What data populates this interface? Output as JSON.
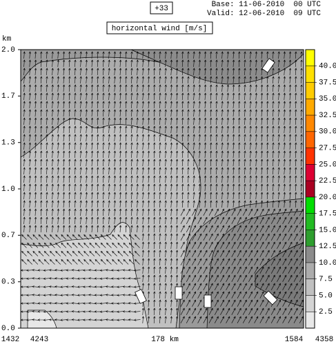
{
  "chart_data": {
    "type": "cross-section",
    "title": "horizontal wind [m/s]",
    "forecast_label": "+33",
    "base": "Base: 11-06-2010  00 UTC",
    "valid": "Valid: 12-06-2010  09 UTC",
    "y_unit": "km",
    "ylim": [
      0,
      2
    ],
    "yticks": [
      {
        "value": 0,
        "label": "0.0"
      },
      {
        "value": 0.333,
        "label": "0.3"
      },
      {
        "value": 0.667,
        "label": "0.7"
      },
      {
        "value": 1,
        "label": "1.0"
      },
      {
        "value": 1.333,
        "label": "1.3"
      },
      {
        "value": 1.667,
        "label": "1.7"
      },
      {
        "value": 2,
        "label": "2.0"
      }
    ],
    "x_labels": [
      "1432",
      "4243",
      "178 km",
      "1584",
      "4358"
    ],
    "colorbar": {
      "levels": [
        0,
        2.5,
        5,
        7.5,
        10,
        12.5,
        15,
        17.5,
        20,
        22.5,
        25,
        27.5,
        30,
        32.5,
        35,
        37.5,
        40,
        42.5
      ],
      "colors": [
        "#e8e8e8",
        "#d4d4d4",
        "#c0c0c0",
        "#acacac",
        "#8c8c8c",
        "#2e9e2e",
        "#22bb22",
        "#00dd00",
        "#aa0022",
        "#dd0033",
        "#ff3300",
        "#ff6600",
        "#ff8800",
        "#ffaa00",
        "#ffcc00",
        "#ffe000",
        "#ffff00"
      ],
      "ticks": [
        2.5,
        {
          "value": 5,
          "label": "5.0"
        },
        7.5,
        {
          "value": 10,
          "label": "10.0"
        },
        12.5,
        {
          "value": 15,
          "label": "15.0"
        },
        17.5,
        {
          "value": 20,
          "label": "20.0"
        },
        22.5,
        {
          "value": 25,
          "label": "25.0"
        },
        27.5,
        {
          "value": 30,
          "label": "30.0"
        },
        32.5,
        {
          "value": 35,
          "label": "35.0"
        },
        37.5,
        {
          "value": 40,
          "label": "40.0"
        }
      ]
    }
  }
}
